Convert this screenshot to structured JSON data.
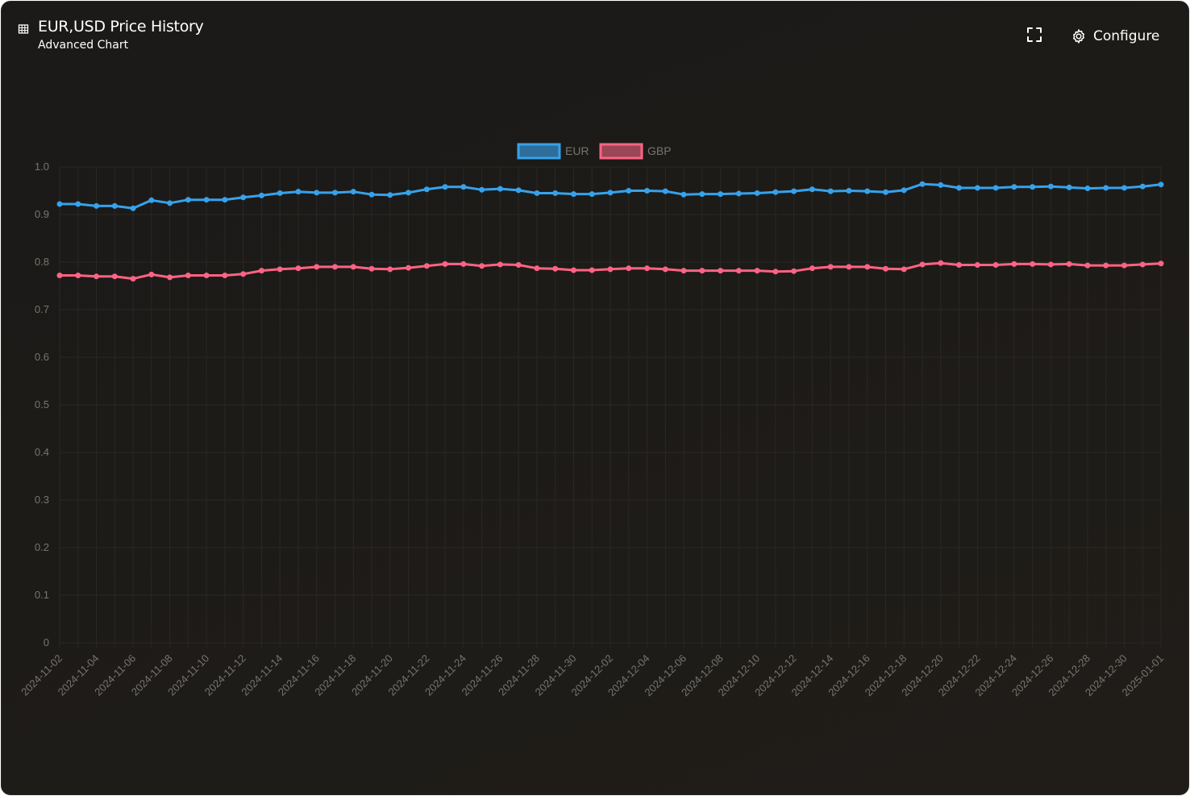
{
  "header": {
    "title": "EUR,USD Price History",
    "subtitle": "Advanced Chart",
    "table_icon": "table-icon",
    "expand_icon": "expand-icon",
    "configure_icon": "gear-icon",
    "configure_label": "Configure"
  },
  "colors": {
    "eur": "#36a2eb",
    "gbp": "#ff6384",
    "grid": "#2a2825",
    "tick": "#777570"
  },
  "chart_data": {
    "type": "line",
    "grid": true,
    "legend_position": "top-center",
    "ylim": [
      0,
      1.0
    ],
    "y_ticks": [
      "0",
      "0.1",
      "0.2",
      "0.3",
      "0.4",
      "0.5",
      "0.6",
      "0.7",
      "0.8",
      "0.9",
      "1.0"
    ],
    "x_tick_labels": [
      "2024-11-02",
      "2024-11-04",
      "2024-11-06",
      "2024-11-08",
      "2024-11-10",
      "2024-11-12",
      "2024-11-14",
      "2024-11-16",
      "2024-11-18",
      "2024-11-20",
      "2024-11-22",
      "2024-11-24",
      "2024-11-26",
      "2024-11-28",
      "2024-11-30",
      "2024-12-02",
      "2024-12-04",
      "2024-12-06",
      "2024-12-08",
      "2024-12-10",
      "2024-12-12",
      "2024-12-14",
      "2024-12-16",
      "2024-12-18",
      "2024-12-20",
      "2024-12-22",
      "2024-12-24",
      "2024-12-26",
      "2024-12-28",
      "2024-12-30",
      "2025-01-01"
    ],
    "x": [
      "2024-11-02",
      "2024-11-03",
      "2024-11-04",
      "2024-11-05",
      "2024-11-06",
      "2024-11-07",
      "2024-11-08",
      "2024-11-09",
      "2024-11-10",
      "2024-11-11",
      "2024-11-12",
      "2024-11-13",
      "2024-11-14",
      "2024-11-15",
      "2024-11-16",
      "2024-11-17",
      "2024-11-18",
      "2024-11-19",
      "2024-11-20",
      "2024-11-21",
      "2024-11-22",
      "2024-11-23",
      "2024-11-24",
      "2024-11-25",
      "2024-11-26",
      "2024-11-27",
      "2024-11-28",
      "2024-11-29",
      "2024-11-30",
      "2024-12-01",
      "2024-12-02",
      "2024-12-03",
      "2024-12-04",
      "2024-12-05",
      "2024-12-06",
      "2024-12-07",
      "2024-12-08",
      "2024-12-09",
      "2024-12-10",
      "2024-12-11",
      "2024-12-12",
      "2024-12-13",
      "2024-12-14",
      "2024-12-15",
      "2024-12-16",
      "2024-12-17",
      "2024-12-18",
      "2024-12-19",
      "2024-12-20",
      "2024-12-21",
      "2024-12-22",
      "2024-12-23",
      "2024-12-24",
      "2024-12-25",
      "2024-12-26",
      "2024-12-27",
      "2024-12-28",
      "2024-12-29",
      "2024-12-30",
      "2024-12-31",
      "2025-01-01"
    ],
    "series": [
      {
        "name": "EUR",
        "values": [
          0.922,
          0.922,
          0.918,
          0.918,
          0.913,
          0.93,
          0.924,
          0.931,
          0.931,
          0.931,
          0.936,
          0.94,
          0.945,
          0.948,
          0.946,
          0.946,
          0.948,
          0.942,
          0.941,
          0.946,
          0.953,
          0.958,
          0.958,
          0.952,
          0.954,
          0.951,
          0.945,
          0.945,
          0.943,
          0.943,
          0.946,
          0.95,
          0.95,
          0.949,
          0.942,
          0.943,
          0.943,
          0.944,
          0.945,
          0.947,
          0.949,
          0.953,
          0.949,
          0.95,
          0.949,
          0.947,
          0.951,
          0.964,
          0.962,
          0.956,
          0.956,
          0.956,
          0.958,
          0.958,
          0.959,
          0.957,
          0.955,
          0.956,
          0.956,
          0.959,
          0.963
        ]
      },
      {
        "name": "GBP",
        "values": [
          0.772,
          0.772,
          0.77,
          0.77,
          0.765,
          0.774,
          0.768,
          0.772,
          0.772,
          0.772,
          0.775,
          0.782,
          0.785,
          0.787,
          0.79,
          0.79,
          0.79,
          0.786,
          0.785,
          0.788,
          0.792,
          0.796,
          0.796,
          0.792,
          0.795,
          0.794,
          0.787,
          0.786,
          0.783,
          0.783,
          0.785,
          0.787,
          0.787,
          0.785,
          0.782,
          0.782,
          0.782,
          0.782,
          0.782,
          0.78,
          0.781,
          0.787,
          0.79,
          0.79,
          0.79,
          0.786,
          0.785,
          0.795,
          0.798,
          0.794,
          0.794,
          0.794,
          0.796,
          0.796,
          0.795,
          0.796,
          0.793,
          0.793,
          0.793,
          0.795,
          0.797
        ]
      }
    ]
  }
}
